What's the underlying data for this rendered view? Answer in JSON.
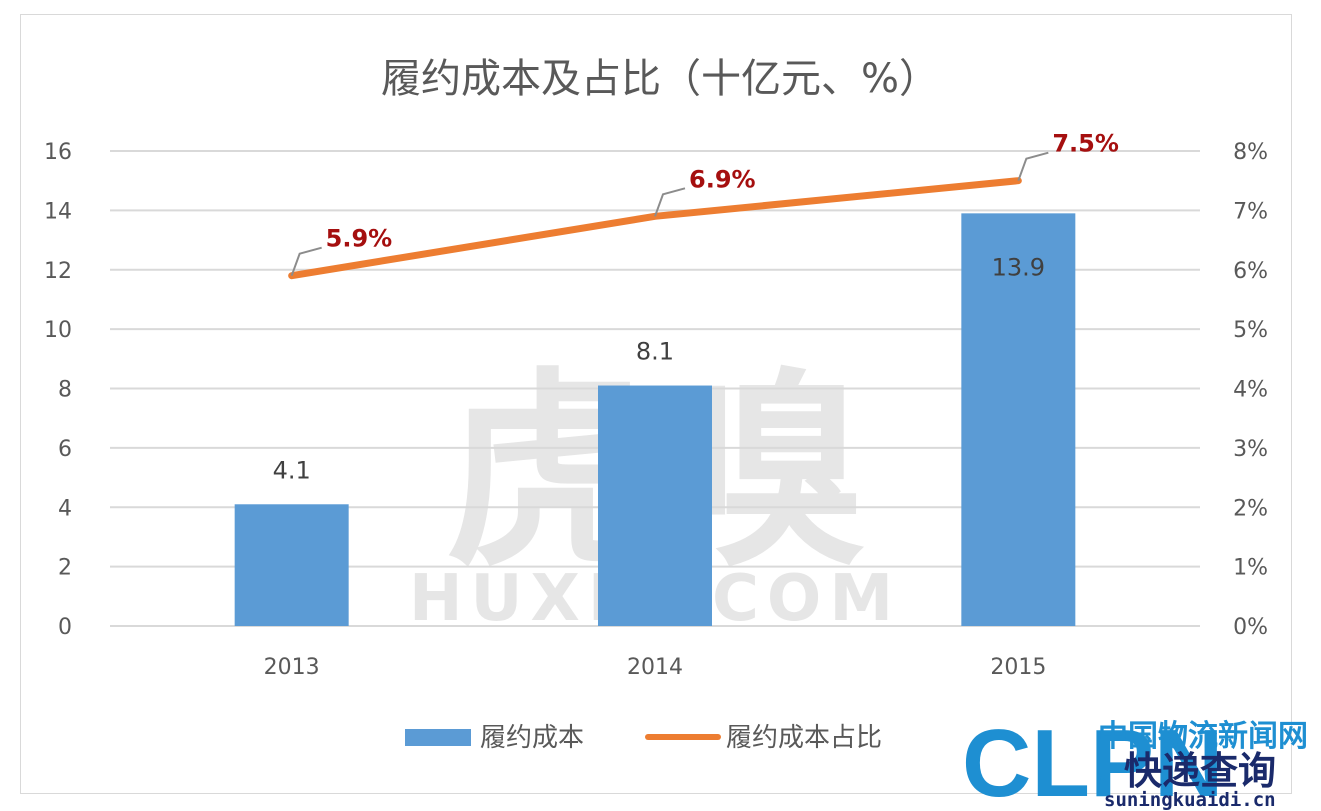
{
  "chart_data": {
    "type": "bar",
    "title": "履约成本及占比（十亿元、%）",
    "categories": [
      "2013",
      "2014",
      "2015"
    ],
    "series": [
      {
        "name": "履约成本",
        "type": "bar",
        "axis": "left",
        "values": [
          4.1,
          8.1,
          13.9
        ],
        "labels": [
          "4.1",
          "8.1",
          "13.9"
        ],
        "color": "#5b9bd5"
      },
      {
        "name": "履约成本占比",
        "type": "line",
        "axis": "right",
        "values": [
          5.9,
          6.9,
          7.5
        ],
        "labels": [
          "5.9%",
          "6.9%",
          "7.5%"
        ],
        "color": "#ed7d31"
      }
    ],
    "y_left": {
      "min": 0,
      "max": 16,
      "ticks": [
        "0",
        "2",
        "4",
        "6",
        "8",
        "10",
        "12",
        "14",
        "16"
      ]
    },
    "y_right": {
      "min": 0,
      "max": 8,
      "ticks": [
        "0%",
        "1%",
        "2%",
        "3%",
        "4%",
        "5%",
        "6%",
        "7%",
        "8%"
      ]
    },
    "grid": true,
    "legend_position": "bottom",
    "line_label_color": "#a50f0f"
  },
  "watermark": {
    "big": "虎嗅",
    "small": "HUXIU.COM"
  },
  "logo": {
    "big": "CLPN",
    "cn_top": "中国物流新闻网",
    "cn_bottom": "快递查询",
    "url": "suningkuaidi.cn",
    "side": "W"
  }
}
